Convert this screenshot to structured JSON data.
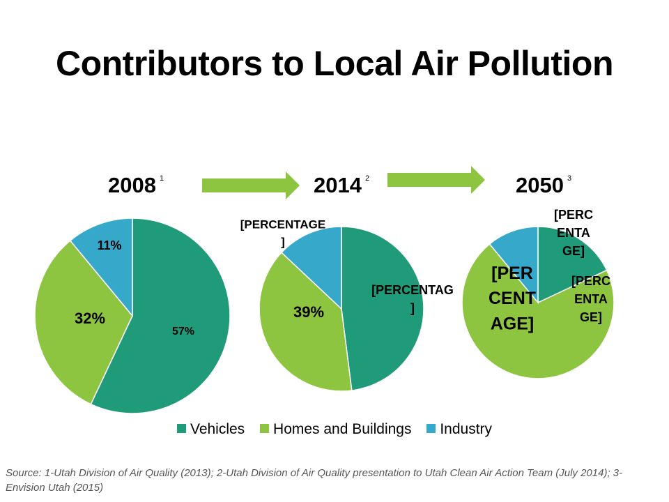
{
  "title": "Contributors to Local Air Pollution",
  "colors": {
    "vehicles": "#1f9b7a",
    "homes": "#8dc540",
    "industry": "#36a9cb",
    "arrow": "#8dc540"
  },
  "years": [
    {
      "label": "2008",
      "note": "1"
    },
    {
      "label": "2014",
      "note": "2"
    },
    {
      "label": "2050",
      "note": "3"
    }
  ],
  "chart_data": [
    {
      "type": "pie",
      "title": "2008",
      "categories": [
        "Vehicles",
        "Homes and Buildings",
        "Industry"
      ],
      "values": [
        57,
        32,
        11
      ],
      "labels": [
        "57%",
        "32%",
        "11%"
      ]
    },
    {
      "type": "pie",
      "title": "2014",
      "categories": [
        "Vehicles",
        "Homes and Buildings",
        "Industry"
      ],
      "values": [
        48,
        39,
        13
      ],
      "labels": [
        "[PERCENTAG ]",
        "39%",
        "[PERCENTAGE ]"
      ]
    },
    {
      "type": "pie",
      "title": "2050",
      "categories": [
        "Vehicles",
        "Homes and Buildings",
        "Industry"
      ],
      "values": [
        18,
        71,
        11
      ],
      "labels": [
        "[PERC ENTA GE]",
        "[PER CENT AGE]",
        "[PERC ENTA GE]"
      ]
    }
  ],
  "legend": [
    {
      "label": "Vehicles",
      "color": "#1f9b7a"
    },
    {
      "label": "Homes and Buildings",
      "color": "#8dc540"
    },
    {
      "label": "Industry",
      "color": "#36a9cb"
    }
  ],
  "source": "Source: 1-Utah Division of Air Quality (2013); 2-Utah Division of Air Quality presentation to Utah Clean Air Action Team (July 2014); 3-Envision Utah (2015)"
}
